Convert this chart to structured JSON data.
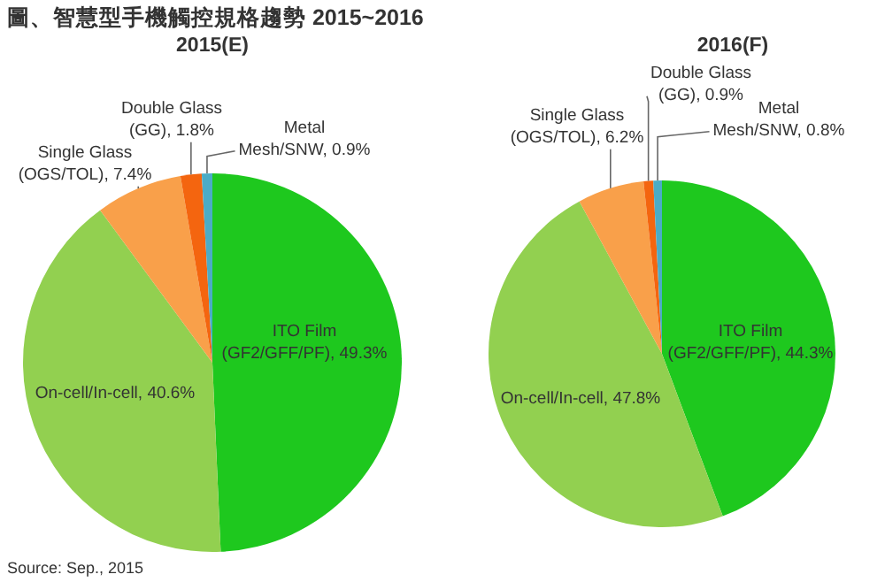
{
  "chart_data": [
    {
      "type": "pie",
      "title": "圖、智慧型手機觸控規格趨勢 2015~2016",
      "subtitle": "2015(E)",
      "categories": [
        "ITO Film (GF2/GFF/PF)",
        "On-cell/In-cell",
        "Single Glass (OGS/TOL)",
        "Double Glass (GG)",
        "Metal Mesh/SNW"
      ],
      "values": [
        49.3,
        40.6,
        7.4,
        1.8,
        0.9
      ],
      "value_labels": [
        "49.3%",
        "40.6%",
        "7.4%",
        "1.8%",
        "0.9%"
      ],
      "colors": [
        "#1ec81e",
        "#92d050",
        "#f9a04a",
        "#f4650f",
        "#4bacc6"
      ],
      "annotations": [
        "Source: Sep., 2015"
      ]
    },
    {
      "type": "pie",
      "subtitle": "2016(F)",
      "categories": [
        "ITO Film (GF2/GFF/PF)",
        "On-cell/In-cell",
        "Single Glass (OGS/TOL)",
        "Double Glass (GG)",
        "Metal Mesh/SNW"
      ],
      "values": [
        44.3,
        47.8,
        6.2,
        0.9,
        0.8
      ],
      "value_labels": [
        "44.3%",
        "47.8%",
        "6.2%",
        "0.9%",
        "0.8%"
      ],
      "colors": [
        "#1ec81e",
        "#92d050",
        "#f9a04a",
        "#f4650f",
        "#4bacc6"
      ]
    }
  ]
}
